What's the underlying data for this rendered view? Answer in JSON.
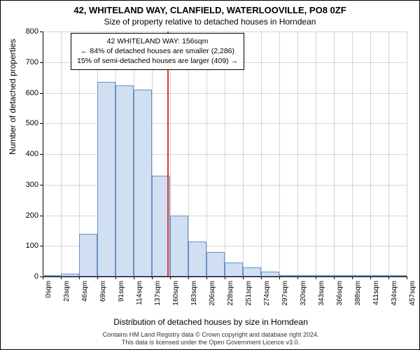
{
  "header": {
    "address": "42, WHITELAND WAY, CLANFIELD, WATERLOOVILLE, PO8 0ZF",
    "subtitle": "Size of property relative to detached houses in Horndean"
  },
  "chart": {
    "type": "histogram",
    "ylabel": "Number of detached properties",
    "xlabel": "Distribution of detached houses by size in Horndean",
    "ylim": [
      0,
      800
    ],
    "ytick_step": 100,
    "yticks": [
      0,
      100,
      200,
      300,
      400,
      500,
      600,
      700,
      800
    ],
    "xtick_labels": [
      "0sqm",
      "23sqm",
      "46sqm",
      "69sqm",
      "91sqm",
      "114sqm",
      "137sqm",
      "160sqm",
      "183sqm",
      "206sqm",
      "228sqm",
      "251sqm",
      "274sqm",
      "297sqm",
      "320sqm",
      "343sqm",
      "366sqm",
      "388sqm",
      "411sqm",
      "434sqm",
      "457sqm"
    ],
    "bar_values": [
      5,
      10,
      140,
      635,
      625,
      610,
      330,
      200,
      115,
      80,
      45,
      30,
      15,
      5,
      2,
      2,
      2,
      2,
      2,
      2
    ],
    "bar_fill": "#d0dff2",
    "bar_stroke": "#6b8fc4",
    "reference_line": {
      "position_bin": 6.85,
      "color": "#d8392f"
    },
    "background_color": "#ffffff",
    "grid_color": "#888888",
    "axis_color": "#000000",
    "label_fontsize": 12,
    "tick_fontsize": 10
  },
  "info_box": {
    "line1": "42 WHITELAND WAY: 156sqm",
    "line2": "← 84% of detached houses are smaller (2,286)",
    "line3": "15% of semi-detached houses are larger (409) →"
  },
  "footer": {
    "line1": "Contains HM Land Registry data © Crown copyright and database right 2024.",
    "line2": "This data is licensed under the Open Government Licence v3.0."
  }
}
